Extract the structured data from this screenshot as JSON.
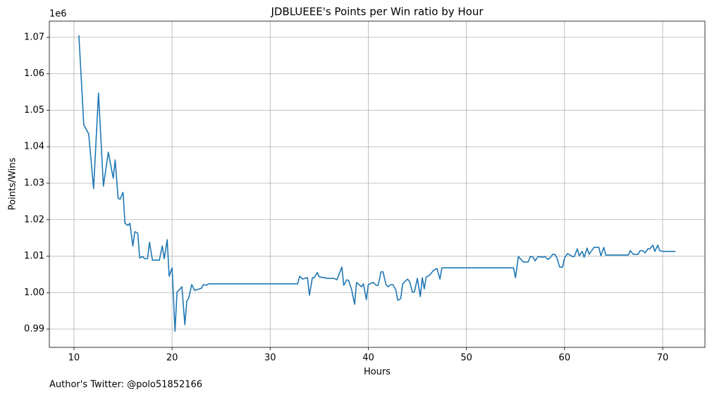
{
  "chart_data": {
    "type": "line",
    "title": "JDBLUEEE's Points per Win ratio by Hour",
    "xlabel": "Hours",
    "ylabel": "Points/Wins",
    "offset_text": "1e6",
    "footnote": "Author's Twitter: @polo51852166",
    "color": "#1f77b4",
    "grid": true,
    "xlim": [
      7.49,
      74.31
    ],
    "ylim": [
      984980,
      1074440
    ],
    "xticks": [
      10,
      20,
      30,
      40,
      50,
      60,
      70
    ],
    "yticks": [
      {
        "value": 990000,
        "label": "0.99"
      },
      {
        "value": 1000000,
        "label": "1.00"
      },
      {
        "value": 1010000,
        "label": "1.01"
      },
      {
        "value": 1020000,
        "label": "1.02"
      },
      {
        "value": 1030000,
        "label": "1.03"
      },
      {
        "value": 1040000,
        "label": "1.04"
      },
      {
        "value": 1050000,
        "label": "1.05"
      },
      {
        "value": 1060000,
        "label": "1.06"
      },
      {
        "value": 1070000,
        "label": "1.07"
      }
    ],
    "x": [
      10.5,
      11.0,
      11.5,
      12.0,
      12.5,
      13.0,
      13.5,
      14.0,
      14.2,
      14.5,
      14.7,
      15.0,
      15.2,
      15.5,
      15.7,
      16.0,
      16.2,
      16.5,
      16.7,
      17.0,
      17.2,
      17.5,
      17.7,
      18.0,
      18.7,
      19.0,
      19.2,
      19.5,
      19.7,
      20.0,
      20.3,
      20.5,
      21.0,
      21.3,
      21.5,
      21.7,
      22.0,
      22.3,
      23.0,
      23.2,
      23.5,
      23.7,
      24.0,
      32.8,
      33.0,
      33.3,
      33.5,
      33.8,
      34.0,
      34.3,
      34.5,
      34.8,
      35.0,
      35.5,
      35.8,
      36.5,
      36.8,
      37.3,
      37.5,
      37.8,
      38.0,
      38.3,
      38.6,
      38.8,
      39.3,
      39.5,
      39.8,
      40.0,
      40.5,
      40.8,
      41.0,
      41.3,
      41.5,
      41.8,
      42.0,
      42.3,
      42.5,
      42.8,
      43.0,
      43.3,
      43.5,
      44.0,
      44.2,
      44.5,
      44.7,
      45.0,
      45.3,
      45.5,
      45.7,
      45.9,
      46.2,
      46.7,
      47.0,
      47.3,
      47.5,
      54.8,
      55.0,
      55.3,
      55.8,
      56.3,
      56.5,
      56.8,
      57.0,
      57.3,
      57.8,
      58.0,
      58.3,
      58.5,
      58.8,
      59.0,
      59.2,
      59.5,
      59.8,
      60.0,
      60.3,
      60.8,
      61.0,
      61.3,
      61.5,
      61.8,
      62.0,
      62.3,
      62.5,
      63.0,
      63.5,
      63.7,
      64.0,
      64.2,
      66.5,
      66.7,
      67.0,
      67.5,
      67.7,
      68.0,
      68.2,
      68.5,
      68.7,
      69.0,
      69.2,
      69.5,
      69.7,
      70.0,
      71.3
    ],
    "values": [
      1070600,
      1046000,
      1043500,
      1028500,
      1054700,
      1029200,
      1038500,
      1031400,
      1036400,
      1025900,
      1025600,
      1027500,
      1019000,
      1018400,
      1019000,
      1012800,
      1016700,
      1016300,
      1009500,
      1009900,
      1009300,
      1009300,
      1013800,
      1008900,
      1008900,
      1012800,
      1009300,
      1014500,
      1004500,
      1006800,
      989400,
      1000100,
      1001600,
      991200,
      997700,
      998500,
      1002200,
      1000600,
      1001200,
      1002200,
      1002000,
      1002400,
      1002400,
      1002400,
      1004500,
      1003700,
      1003900,
      1004100,
      999300,
      1004100,
      1004100,
      1005500,
      1004300,
      1004100,
      1003900,
      1003900,
      1003500,
      1007000,
      1002000,
      1003500,
      1003300,
      1000800,
      996800,
      1002800,
      1001600,
      1002400,
      998100,
      1002200,
      1002800,
      1002000,
      1002000,
      1005700,
      1005700,
      1002200,
      1001600,
      1002200,
      1002200,
      1000800,
      997900,
      998300,
      1002400,
      1003700,
      1003100,
      1000100,
      1000200,
      1003900,
      998900,
      1004100,
      1001000,
      1004300,
      1004700,
      1006200,
      1006600,
      1003700,
      1006800,
      1006800,
      1004100,
      1009900,
      1008400,
      1008400,
      1009900,
      1009700,
      1008700,
      1009900,
      1009700,
      1009900,
      1009100,
      1009500,
      1010500,
      1010500,
      1009700,
      1007000,
      1007000,
      1009500,
      1010700,
      1009900,
      1009900,
      1012000,
      1010100,
      1011300,
      1009700,
      1012200,
      1010500,
      1012400,
      1012400,
      1010100,
      1012400,
      1010300,
      1010300,
      1011500,
      1010500,
      1010500,
      1011500,
      1011500,
      1010900,
      1012000,
      1012000,
      1013000,
      1011300,
      1013000,
      1011500,
      1011300,
      1011300
    ]
  }
}
